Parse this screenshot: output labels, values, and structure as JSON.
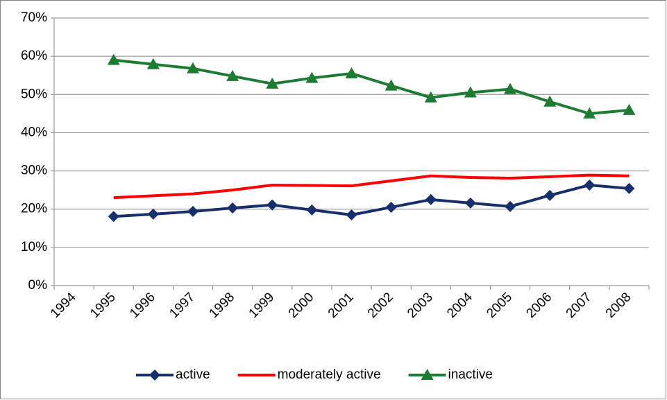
{
  "chart_data": {
    "type": "line",
    "categories": [
      "1994",
      "1995",
      "1996",
      "1997",
      "1998",
      "1999",
      "2000",
      "2001",
      "2002",
      "2003",
      "2004",
      "2005",
      "2006",
      "2007",
      "2008"
    ],
    "series": [
      {
        "name": "active",
        "color": "#17306b",
        "marker": "diamond",
        "values": [
          null,
          18.1,
          18.7,
          19.4,
          20.3,
          21.1,
          19.8,
          18.5,
          20.5,
          22.5,
          21.6,
          20.7,
          23.6,
          26.3,
          25.4
        ]
      },
      {
        "name": "moderately active",
        "color": "#ff0000",
        "marker": "none",
        "values": [
          null,
          23.0,
          23.5,
          24.0,
          25.0,
          26.3,
          26.2,
          26.1,
          27.4,
          28.7,
          28.3,
          28.1,
          28.5,
          28.9,
          28.7
        ]
      },
      {
        "name": "inactive",
        "color": "#1e7b32",
        "marker": "triangle",
        "values": [
          null,
          59.0,
          57.9,
          56.8,
          54.8,
          52.8,
          54.3,
          55.5,
          52.3,
          49.2,
          50.5,
          51.4,
          48.1,
          45.0,
          45.9
        ]
      }
    ],
    "ylim": [
      0,
      70
    ],
    "yticks": [
      {
        "value": 0,
        "label": "0%"
      },
      {
        "value": 10,
        "label": "10%"
      },
      {
        "value": 20,
        "label": "20%"
      },
      {
        "value": 30,
        "label": "30%"
      },
      {
        "value": 40,
        "label": "40%"
      },
      {
        "value": 50,
        "label": "50%"
      },
      {
        "value": 60,
        "label": "60%"
      },
      {
        "value": 70,
        "label": "70%"
      }
    ],
    "grid": true,
    "legend": "bottom"
  }
}
